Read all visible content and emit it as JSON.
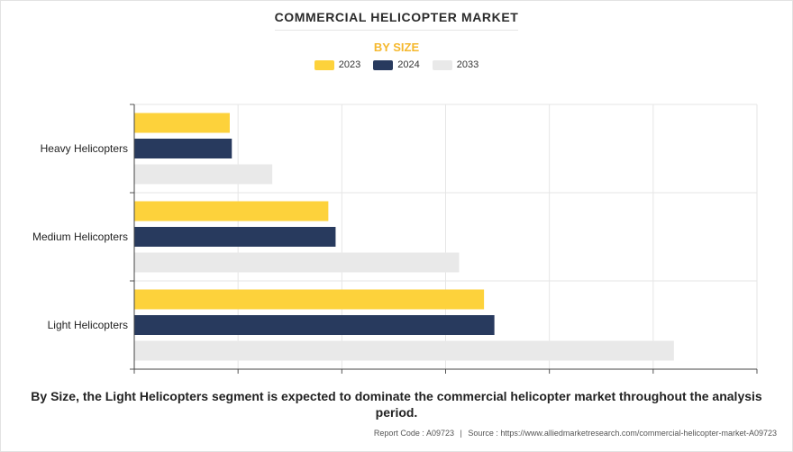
{
  "title": "COMMERCIAL HELICOPTER MARKET",
  "subtitle": "BY SIZE",
  "legend": [
    {
      "label": "2023",
      "color": "#fdd23b"
    },
    {
      "label": "2024",
      "color": "#283a5e"
    },
    {
      "label": "2033",
      "color": "#e9e9e9"
    }
  ],
  "caption": "By Size, the Light Helicopters segment is expected to dominate the commercial helicopter market throughout the analysis period.",
  "footer": {
    "report_code": "Report Code : A09723",
    "separator": "|",
    "source": "Source : https://www.alliedmarketresearch.com/commercial-helicopter-market-A09723"
  },
  "chart_data": {
    "type": "bar",
    "orientation": "horizontal",
    "categories": [
      "Heavy Helicopters",
      "Medium Helicopters",
      "Light Helicopters"
    ],
    "series": [
      {
        "name": "2023",
        "values": [
          0.92,
          1.87,
          3.37
        ],
        "color": "#fdd23b"
      },
      {
        "name": "2024",
        "values": [
          0.94,
          1.94,
          3.47
        ],
        "color": "#283a5e"
      },
      {
        "name": "2033",
        "values": [
          1.33,
          3.13,
          5.2
        ],
        "color": "#e9e9e9"
      }
    ],
    "xlim": [
      0,
      6
    ],
    "grid": true,
    "legend_position": "top"
  }
}
